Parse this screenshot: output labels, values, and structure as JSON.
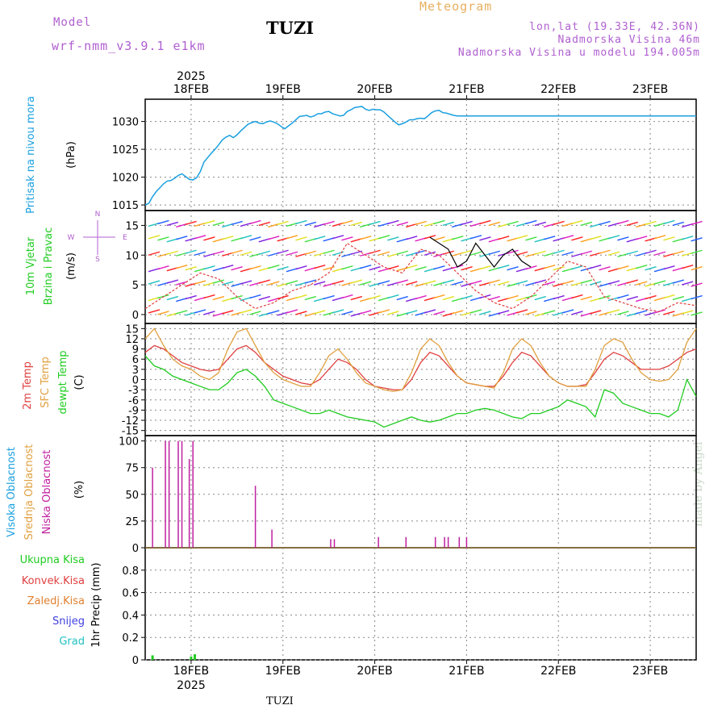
{
  "header": {
    "model_label": "Model",
    "model_version": "wrf-nmm_v3.9.1 e1km",
    "title": "TUZI",
    "meteogram": "Meteogram",
    "lonlat": "lon,lat (19.33E, 42.36N)",
    "elevation": "Nadmorska Visina 46m",
    "model_elevation": "Nadmorska Visina u modelu 194.005m"
  },
  "footer": {
    "station": "TUZI",
    "credit": "made by Angel"
  },
  "colors": {
    "pressure": "#1aa0e0",
    "temp2m": "#e04040",
    "sfc": "#e0a040",
    "dewpt": "#20cc20",
    "low_cloud": "#c020a0",
    "precip": "#20cc20",
    "purple": "#b060d0"
  },
  "chart_data": [
    {
      "type": "line",
      "panel": "pressure",
      "labels": [
        "Pritisak na nivou mora",
        "(hPa)"
      ],
      "ylim": [
        1014,
        1034
      ],
      "yticks": [
        1015,
        1020,
        1025,
        1030
      ],
      "series": [
        {
          "x": [
            0,
            0.2,
            0.4,
            0.6,
            0.8,
            1.0,
            1.2,
            1.4,
            1.6,
            1.8,
            2.0,
            2.2,
            2.4,
            2.6,
            2.8,
            3.0,
            3.2,
            3.4,
            3.6,
            3.8,
            4.0,
            4.2,
            4.4,
            4.6,
            4.8,
            5.0,
            5.2,
            5.4,
            5.6,
            5.8,
            6.0,
            6.2,
            6.4,
            6.6,
            6.8,
            7.0,
            7.2,
            7.4,
            7.6,
            7.8,
            8.0,
            8.2,
            8.4,
            8.6,
            8.8,
            9.0,
            9.2,
            9.4,
            9.6,
            9.8,
            10.0,
            10.2,
            10.4,
            10.6,
            10.8,
            11.0,
            11.2,
            11.4,
            11.6,
            11.8,
            12.0,
            12.2,
            12.4,
            12.6,
            12.8,
            13.0,
            13.2,
            13.4,
            13.6,
            13.8,
            14.0,
            14.2,
            14.4,
            14.6,
            14.8,
            15.0,
            15.2,
            15.4,
            15.6,
            15.8,
            16.0,
            16.2,
            16.4,
            16.6,
            16.8,
            17.0,
            17.2,
            17.4,
            17.6,
            17.8,
            18.0,
            18.2,
            18.4,
            18.6,
            18.8,
            19.0,
            19.2,
            19.4,
            19.6,
            19.8,
            20.0,
            20.2,
            20.4,
            20.6,
            20.8,
            21.0,
            21.2,
            21.4,
            21.6,
            21.8,
            22.0,
            22.2,
            22.4,
            22.6,
            22.8,
            23.0,
            23.2,
            23.4,
            23.6,
            23.8,
            24.0,
            24.2,
            24.4,
            24.6,
            24.8,
            25.0,
            25.2,
            25.4,
            25.6,
            25.8,
            26.0,
            26.2,
            26.4,
            26.6,
            26.8,
            27.0,
            27.2,
            27.4,
            27.6,
            27.8,
            28.0,
            28.2,
            28.4,
            28.6,
            28.8,
            29.0,
            29.2,
            29.4,
            29.6,
            29.8,
            30.0
          ],
          "values": [
            1015.0,
            1015.3,
            1016.5,
            1017.4,
            1018.1,
            1018.8,
            1019.3,
            1019.4,
            1019.8,
            1020.3,
            1020.6,
            1020.1,
            1019.6,
            1019.5,
            1019.9,
            1021.0,
            1022.7,
            1023.5,
            1024.3,
            1025.0,
            1025.8,
            1026.7,
            1027.2,
            1027.5,
            1027.1,
            1027.6,
            1028.3,
            1028.9,
            1029.5,
            1029.8,
            1030.0,
            1029.7,
            1029.6,
            1029.9,
            1030.1,
            1029.9,
            1029.6,
            1029.1,
            1028.7,
            1029.2,
            1029.7,
            1030.3,
            1030.9,
            1031.0,
            1031.1,
            1030.8,
            1031.0,
            1031.4,
            1031.4,
            1031.7,
            1031.8,
            1031.4,
            1031.2,
            1031.0,
            1031.1,
            1031.8,
            1032.1,
            1032.5,
            1032.6,
            1032.7,
            1032.2,
            1032.0,
            1032.2,
            1032.1,
            1032.1,
            1031.7,
            1031.1,
            1030.5,
            1029.9,
            1029.4,
            1029.6,
            1029.9,
            1030.3,
            1030.3,
            1030.5,
            1030.6,
            1030.5,
            1031.0,
            1031.6,
            1031.9,
            1032.0,
            1031.6,
            1031.5,
            1031.3,
            1031.1,
            1031.0,
            1031.0,
            1031.0,
            1031.0,
            1031.0,
            1031.0,
            1031.0,
            1031.0,
            1031.0,
            1031.0,
            1031.0,
            1031.0,
            1031.0,
            1031.0,
            1031.0,
            1031.0,
            1031.0,
            1031.0,
            1031.0,
            1031.0,
            1031.0,
            1031.0,
            1031.0,
            1031.0,
            1031.0,
            1031.0,
            1031.0,
            1031.0,
            1031.0,
            1031.0,
            1031.0,
            1031.0,
            1031.0,
            1031.0,
            1031.0,
            1031.0,
            1031.0,
            1031.0,
            1031.0,
            1031.0,
            1031.0,
            1031.0,
            1031.0,
            1031.0,
            1031.0,
            1031.0,
            1031.0,
            1031.0,
            1031.0,
            1031.0,
            1031.0,
            1031.0,
            1031.0,
            1031.0,
            1031.0,
            1031.0,
            1031.0,
            1031.0,
            1031.0,
            1031.0,
            1031.0,
            1031.0,
            1031.0,
            1031.0,
            1031.0,
            1031.0
          ]
        }
      ]
    },
    {
      "type": "line",
      "panel": "wind",
      "labels": [
        "10m Vjetar",
        "Brzina i Pravac",
        "(m/s)"
      ],
      "compass": [
        "N",
        "E",
        "S",
        "W"
      ],
      "ylim": [
        -1.5,
        17.5
      ],
      "yticks": [
        0,
        5,
        10,
        15
      ],
      "series": [
        {
          "name": "speed",
          "color": "#e04040",
          "x": [
            0,
            1,
            2,
            3,
            4,
            5,
            6,
            7,
            8,
            9,
            10,
            11,
            12,
            13,
            14,
            15,
            16,
            17,
            18,
            19,
            20,
            21,
            22,
            23,
            24,
            25,
            26,
            27,
            28,
            29,
            30
          ],
          "values": [
            1,
            3,
            5,
            7,
            6,
            3,
            1,
            2,
            4,
            5,
            7,
            12,
            10,
            8,
            7,
            11,
            10,
            7,
            4,
            2,
            1,
            3,
            6,
            9,
            8,
            3,
            2,
            1,
            0.5,
            2,
            1.5
          ]
        },
        {
          "name": "gust",
          "color": "#000000",
          "x": [
            15.5,
            16.5,
            17,
            17.5,
            18,
            18.5,
            19,
            19.5,
            20,
            20.5,
            21
          ],
          "values": [
            13,
            11,
            8,
            9,
            12,
            10,
            8,
            10,
            11,
            9,
            8
          ]
        }
      ]
    },
    {
      "type": "line",
      "panel": "temperature",
      "labels": [
        "2m Temp",
        "SFC Temp",
        "dewpt Temp",
        "(C)"
      ],
      "ylim": [
        -16.5,
        16.5
      ],
      "yticks": [
        -15,
        -12,
        -9,
        -6,
        -3,
        0,
        3,
        6,
        9,
        12,
        15
      ],
      "series": [
        {
          "name": "2m Temp",
          "color": "#e04040",
          "x": [
            0,
            0.5,
            1,
            1.5,
            2,
            2.5,
            3,
            3.5,
            4,
            4.5,
            5,
            5.5,
            6,
            6.5,
            7,
            7.5,
            8,
            8.5,
            9,
            9.5,
            10,
            10.5,
            11,
            11.5,
            12,
            12.5,
            13,
            13.5,
            14,
            14.5,
            15,
            15.5,
            16,
            16.5,
            17,
            17.5,
            18,
            18.5,
            19,
            19.5,
            20,
            20.5,
            21,
            21.5,
            22,
            22.5,
            23,
            23.5,
            24,
            24.5,
            25,
            25.5,
            26,
            26.5,
            27,
            27.5,
            28,
            28.5,
            29,
            29.5,
            30
          ],
          "values": [
            8,
            10,
            9,
            7,
            5,
            4,
            3,
            2.5,
            3,
            6,
            9,
            10,
            8,
            5,
            3,
            1,
            0,
            -1,
            -1.5,
            0,
            3,
            6,
            5,
            3,
            0,
            -2,
            -2.5,
            -3,
            -3,
            0,
            5,
            8,
            7,
            4,
            1,
            -1,
            -1.5,
            -2,
            -2,
            1,
            5,
            8,
            7,
            4,
            1,
            -1,
            -2,
            -2,
            -1.5,
            2,
            6,
            8,
            7,
            5,
            3,
            3,
            3,
            4,
            6,
            8,
            9
          ]
        },
        {
          "name": "SFC Temp",
          "color": "#e0a040",
          "x": [
            0,
            0.5,
            1,
            1.5,
            2,
            2.5,
            3,
            3.5,
            4,
            4.5,
            5,
            5.5,
            6,
            6.5,
            7,
            7.5,
            8,
            8.5,
            9,
            9.5,
            10,
            10.5,
            11,
            11.5,
            12,
            12.5,
            13,
            13.5,
            14,
            14.5,
            15,
            15.5,
            16,
            16.5,
            17,
            17.5,
            18,
            18.5,
            19,
            19.5,
            20,
            20.5,
            21,
            21.5,
            22,
            22.5,
            23,
            23.5,
            24,
            24.5,
            25,
            25.5,
            26,
            26.5,
            27,
            27.5,
            28,
            28.5,
            29,
            29.5,
            30
          ],
          "values": [
            12,
            15,
            10,
            6,
            4,
            3,
            1,
            0,
            2,
            9,
            14,
            15,
            10,
            5,
            2,
            0,
            -1,
            -2,
            -2,
            2,
            7,
            9,
            6,
            2,
            -1,
            -2,
            -3,
            -3.5,
            -3,
            2,
            9,
            12,
            10,
            5,
            1,
            -1,
            -1.5,
            -2,
            -2.5,
            2,
            9,
            12,
            10,
            5,
            1,
            -1,
            -2,
            -2,
            -2,
            3,
            10,
            12,
            11,
            6,
            2,
            0,
            -0.5,
            0,
            3,
            11,
            15
          ]
        },
        {
          "name": "dewpt Temp",
          "color": "#20cc20",
          "x": [
            0,
            0.5,
            1,
            1.5,
            2,
            2.5,
            3,
            3.5,
            4,
            4.5,
            5,
            5.5,
            6,
            6.5,
            7,
            7.5,
            8,
            8.5,
            9,
            9.5,
            10,
            10.5,
            11,
            11.5,
            12,
            12.5,
            13,
            13.5,
            14,
            14.5,
            15,
            15.5,
            16,
            16.5,
            17,
            17.5,
            18,
            18.5,
            19,
            19.5,
            20,
            20.5,
            21,
            21.5,
            22,
            22.5,
            23,
            23.5,
            24,
            24.5,
            25,
            25.5,
            26,
            26.5,
            27,
            27.5,
            28,
            28.5,
            29,
            29.5,
            30
          ],
          "values": [
            7,
            4,
            3,
            1,
            0,
            -1,
            -2,
            -3,
            -3,
            -1,
            2,
            3,
            1,
            -2,
            -6,
            -7,
            -8,
            -9,
            -10,
            -10,
            -9,
            -10,
            -11,
            -11.5,
            -12,
            -12.5,
            -14,
            -13,
            -12,
            -11,
            -12,
            -12.5,
            -12,
            -11,
            -10,
            -10,
            -9,
            -8.5,
            -9,
            -10,
            -11,
            -11.5,
            -10,
            -10,
            -9,
            -8,
            -6,
            -7,
            -8,
            -11,
            -3,
            -4,
            -7,
            -8,
            -9,
            -10,
            -10,
            -11,
            -9,
            0,
            -5
          ]
        }
      ]
    },
    {
      "type": "bar",
      "panel": "cloud",
      "labels": [
        "Visoka Oblacnost",
        "Srednja Oblacnost",
        "Niska Oblacnost",
        "(%)"
      ],
      "ylim": [
        0,
        105
      ],
      "yticks": [
        0,
        25,
        50,
        75,
        100
      ],
      "series": [
        {
          "name": "Niska Oblacnost",
          "x": [
            0.4,
            1.1,
            1.3,
            1.8,
            2.0,
            2.4,
            2.6,
            6.0,
            6.9,
            10.1,
            10.3,
            12.7,
            14.2,
            15.8,
            16.3,
            16.5,
            17.1,
            17.5
          ],
          "values": [
            75,
            100,
            100,
            100,
            100,
            83,
            100,
            58,
            17,
            8,
            8,
            10,
            10,
            10,
            10,
            10,
            10,
            10
          ]
        }
      ]
    },
    {
      "type": "bar",
      "panel": "precip",
      "labels": [
        "Ukupna Kisa",
        "Konvek.Kisa",
        "Zaledj.Kisa",
        "Snijeg",
        "Grad",
        "1hr Precip (mm)"
      ],
      "ylim": [
        0,
        1.0
      ],
      "yticks": [
        0,
        0.2,
        0.4,
        0.6,
        0.8
      ],
      "series": [
        {
          "name": "Ukupna Kisa",
          "x": [
            0.4,
            2.5,
            2.7
          ],
          "values": [
            0.04,
            0.03,
            0.05
          ]
        }
      ]
    }
  ],
  "xaxis": {
    "year": "2025",
    "days": [
      "18FEB",
      "19FEB",
      "20FEB",
      "21FEB",
      "22FEB",
      "23FEB"
    ],
    "day_ticks_x": [
      2.5,
      7.5,
      12.5,
      17.5,
      22.5,
      27.5
    ],
    "range": [
      0,
      30
    ]
  }
}
